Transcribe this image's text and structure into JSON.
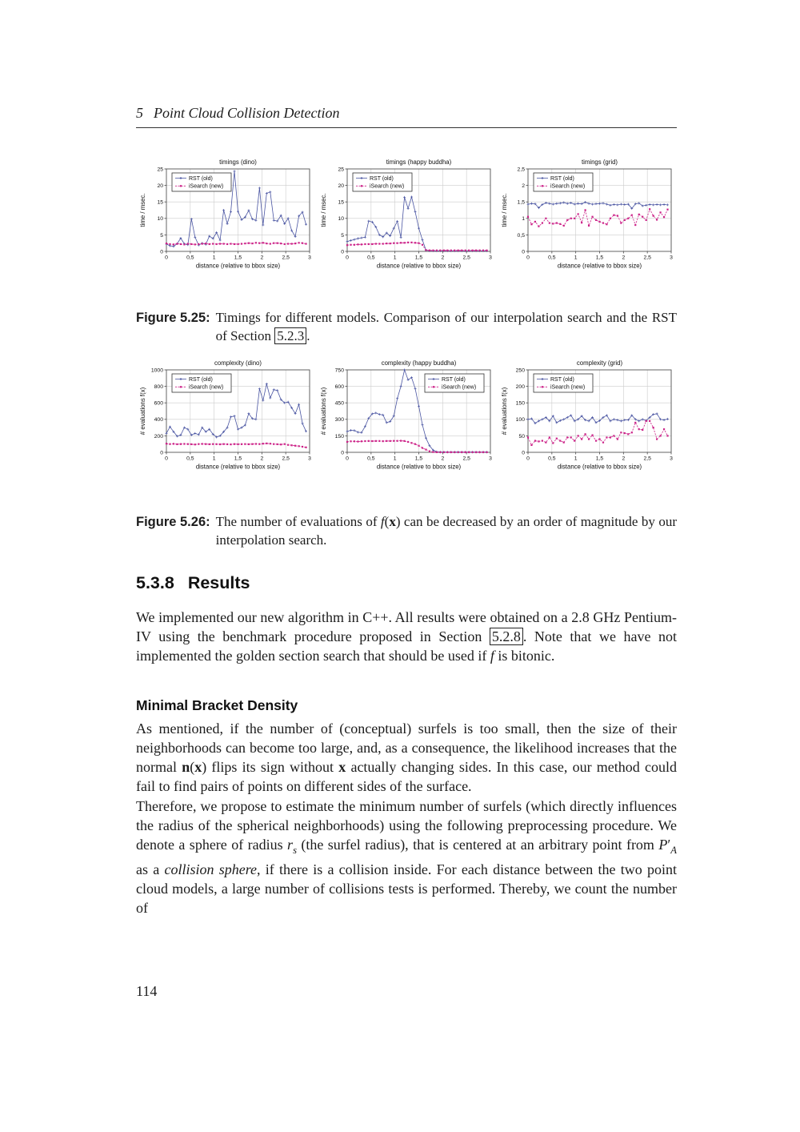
{
  "page": {
    "chapter_number": "5",
    "chapter_title": "Point Cloud Collision Detection",
    "page_number": "114"
  },
  "figures": {
    "fig25": {
      "label": "Figure 5.25:",
      "caption": [
        {
          "t": "Timings for different models. Comparison of our interpolation search and the RST of Section ",
          "s": "n"
        },
        {
          "t": "5.2.3",
          "s": "ref"
        },
        {
          "t": ".",
          "s": "n"
        }
      ]
    },
    "fig26": {
      "label": "Figure 5.26:",
      "caption": [
        {
          "t": "The number of evaluations of ",
          "s": "n"
        },
        {
          "t": "f",
          "s": "i"
        },
        {
          "t": "(",
          "s": "n"
        },
        {
          "t": "x",
          "s": "b"
        },
        {
          "t": ")",
          "s": "n"
        },
        {
          "t": " can be decreased by an order of magnitude by our interpolation search.",
          "s": "n"
        }
      ]
    }
  },
  "section": {
    "number": "5.3.8",
    "title": "Results"
  },
  "subheading": "Minimal Bracket Density",
  "paragraphs": {
    "p1": [
      {
        "t": "We implemented our new algorithm in C++. All results were obtained on a 2.8 GHz Pentium-IV using the benchmark procedure proposed in Section ",
        "s": "n"
      },
      {
        "t": "5.2.8",
        "s": "ref"
      },
      {
        "t": ". Note that we have not implemented the golden section search that should be used if ",
        "s": "n"
      },
      {
        "t": "f",
        "s": "i"
      },
      {
        "t": " is bitonic.",
        "s": "n"
      }
    ],
    "p2": [
      {
        "t": "As mentioned, if the number of (conceptual) surfels is too small, then the size of their neighborhoods can become too large, and, as a consequence, the likelihood increases that the normal ",
        "s": "n"
      },
      {
        "t": "n",
        "s": "b"
      },
      {
        "t": "(",
        "s": "n"
      },
      {
        "t": "x",
        "s": "b"
      },
      {
        "t": ") flips its sign without ",
        "s": "n"
      },
      {
        "t": "x",
        "s": "b"
      },
      {
        "t": " actually changing sides. In this case, our method could fail to find pairs of points on different sides of the surface.",
        "s": "n"
      }
    ],
    "p3": [
      {
        "t": "Therefore, we propose to estimate the minimum number of surfels (which directly influences the radius of the spherical neighborhoods) using the following preprocessing procedure. We denote a sphere of radius ",
        "s": "n"
      },
      {
        "t": "r",
        "s": "i"
      },
      {
        "t": "s",
        "s": "isub"
      },
      {
        "t": " (the surfel radius), that is centered at an arbitrary point from ",
        "s": "n"
      },
      {
        "t": "P",
        "s": "i"
      },
      {
        "t": "′",
        "s": "n"
      },
      {
        "t": "A",
        "s": "isub"
      },
      {
        "t": " as a ",
        "s": "n"
      },
      {
        "t": "collision sphere",
        "s": "i"
      },
      {
        "t": ", if there is a collision inside. For each distance between the two point cloud models, a large number of collisions tests is performed. Thereby, we count the number of",
        "s": "n"
      }
    ]
  },
  "chart_data": {
    "type": "line",
    "xlabel": "distance (relative to bbox size)",
    "xticks": [
      "0",
      "0,5",
      "1",
      "1,5",
      "2",
      "2,5",
      "3"
    ],
    "xlim": [
      0,
      3
    ],
    "grid": true,
    "shared_x": [
      0,
      0.075,
      0.15,
      0.225,
      0.3,
      0.375,
      0.45,
      0.525,
      0.6,
      0.675,
      0.75,
      0.825,
      0.9,
      0.975,
      1.05,
      1.125,
      1.2,
      1.275,
      1.35,
      1.425,
      1.5,
      1.575,
      1.65,
      1.725,
      1.8,
      1.875,
      1.95,
      2.025,
      2.1,
      2.175,
      2.25,
      2.325,
      2.4,
      2.475,
      2.55,
      2.625,
      2.7,
      2.775,
      2.85,
      2.925
    ],
    "charts": [
      {
        "title": "timings (dino)",
        "ylabel": "time / msec.",
        "xlabel": "distance (relative to bbox size)",
        "ylim": [
          0,
          25
        ],
        "yticks": [
          "0",
          "5",
          "10",
          "15",
          "20",
          "25"
        ],
        "xticks": [
          "0",
          "0,5",
          "1",
          "1,5",
          "2",
          "2,5",
          "3"
        ],
        "legend": "top-left",
        "series": [
          {
            "name": "RST (old)",
            "color": "#4a55a2",
            "marker": "plus",
            "dash": "solid",
            "values": [
              2.2,
              1.7,
              1.5,
              2.3,
              4.0,
              2.3,
              2.0,
              9.8,
              4.3,
              1.9,
              2.5,
              2.1,
              4.6,
              3.9,
              5.7,
              3.4,
              12.5,
              8.4,
              12.0,
              24.3,
              12.1,
              9.6,
              10.4,
              12.4,
              9.8,
              9.4,
              19.2,
              8.0,
              17.6,
              18.0,
              9.4,
              9.2,
              10.9,
              8.4,
              10.0,
              6.3,
              4.5,
              10.7,
              11.9,
              8.2
            ]
          },
          {
            "name": "iSearch (new)",
            "color": "#cc2288",
            "marker": "square",
            "dash": "dashed",
            "values": [
              2.4,
              2.2,
              2.1,
              2.3,
              2.2,
              2.1,
              2.3,
              2.2,
              2.1,
              2.2,
              2.3,
              2.4,
              2.2,
              2.3,
              2.2,
              2.3,
              2.3,
              2.2,
              2.3,
              2.2,
              2.2,
              2.3,
              2.4,
              2.5,
              2.4,
              2.6,
              2.5,
              2.6,
              2.4,
              2.3,
              2.5,
              2.5,
              2.4,
              2.2,
              2.3,
              2.3,
              2.4,
              2.6,
              2.5,
              2.3
            ]
          }
        ]
      },
      {
        "title": "timings (happy buddha)",
        "ylabel": "time / msec.",
        "xlabel": "distance (relative to bbox size)",
        "ylim": [
          0,
          25
        ],
        "yticks": [
          "0",
          "5",
          "10",
          "15",
          "20",
          "25"
        ],
        "xticks": [
          "0",
          "0,5",
          "1",
          "1,5",
          "2",
          "2,5",
          "3"
        ],
        "legend": "top-left",
        "series": [
          {
            "name": "RST (old)",
            "color": "#4a55a2",
            "marker": "plus",
            "dash": "solid",
            "values": [
              3.0,
              3.3,
              3.6,
              3.9,
              4.1,
              4.3,
              9.2,
              8.9,
              7.4,
              5.0,
              4.4,
              5.6,
              4.7,
              7.0,
              9.1,
              4.2,
              16.4,
              13.0,
              16.5,
              12.0,
              7.0,
              3.5,
              0.4,
              0.15,
              0.15,
              0.15,
              0.15,
              0.15,
              0.15,
              0.15,
              0.15,
              0.15,
              0.15,
              0.15,
              0.15,
              0.15,
              0.15,
              0.15,
              0.15,
              0.15
            ]
          },
          {
            "name": "iSearch (new)",
            "color": "#cc2288",
            "marker": "square",
            "dash": "dashed",
            "values": [
              1.9,
              2.0,
              2.0,
              2.1,
              2.1,
              2.2,
              2.2,
              2.2,
              2.3,
              2.3,
              2.3,
              2.4,
              2.4,
              2.5,
              2.5,
              2.6,
              2.6,
              2.7,
              2.7,
              2.6,
              2.5,
              2.0,
              0.4,
              0.3,
              0.3,
              0.3,
              0.3,
              0.3,
              0.3,
              0.3,
              0.3,
              0.3,
              0.3,
              0.3,
              0.3,
              0.3,
              0.3,
              0.3,
              0.3,
              0.3
            ]
          }
        ]
      },
      {
        "title": "timings (grid)",
        "ylabel": "time / msec.",
        "xlabel": "distance (relative to bbox size)",
        "ylim": [
          0,
          2.5
        ],
        "yticks": [
          "0",
          "0,5",
          "1",
          "1,5",
          "2",
          "2,5"
        ],
        "xticks": [
          "0",
          "0,5",
          "1",
          "1,5",
          "2",
          "2,5",
          "3"
        ],
        "legend": "top-left",
        "series": [
          {
            "name": "RST (old)",
            "color": "#4a55a2",
            "marker": "plus",
            "dash": "solid",
            "values": [
              1.43,
              1.45,
              1.44,
              1.32,
              1.42,
              1.47,
              1.45,
              1.43,
              1.45,
              1.46,
              1.48,
              1.45,
              1.47,
              1.43,
              1.45,
              1.44,
              1.49,
              1.45,
              1.43,
              1.44,
              1.45,
              1.46,
              1.43,
              1.4,
              1.42,
              1.41,
              1.43,
              1.42,
              1.43,
              1.3,
              1.44,
              1.46,
              1.38,
              1.4,
              1.42,
              1.41,
              1.42,
              1.41,
              1.42,
              1.41
            ]
          },
          {
            "name": "iSearch (new)",
            "color": "#cc2288",
            "marker": "square",
            "dash": "dashed",
            "values": [
              1.05,
              0.82,
              0.9,
              0.76,
              0.86,
              1.0,
              0.86,
              0.84,
              0.86,
              0.83,
              0.78,
              0.95,
              1.0,
              1.0,
              1.13,
              0.87,
              1.25,
              0.78,
              1.05,
              0.95,
              0.9,
              0.86,
              0.82,
              1.0,
              1.1,
              1.08,
              0.86,
              0.95,
              1.0,
              1.1,
              0.8,
              1.12,
              1.05,
              0.95,
              1.28,
              1.08,
              0.96,
              1.18,
              1.04,
              1.27
            ]
          }
        ]
      },
      {
        "title": "complexity (dino)",
        "ylabel": "# evaluations f(x)",
        "xlabel": "distance (relative to bbox size)",
        "ylim": [
          0,
          1000
        ],
        "yticks": [
          "0",
          "200",
          "400",
          "600",
          "800",
          "1000"
        ],
        "xticks": [
          "0",
          "0,5",
          "1",
          "1,5",
          "2",
          "2,5",
          "3"
        ],
        "legend": "top-left",
        "series": [
          {
            "name": "RST (old)",
            "color": "#4a55a2",
            "marker": "plus",
            "dash": "solid",
            "values": [
              230,
              310,
              250,
              195,
              210,
              300,
              280,
              210,
              230,
              215,
              300,
              250,
              280,
              220,
              185,
              200,
              250,
              300,
              430,
              440,
              280,
              300,
              330,
              470,
              410,
              400,
              770,
              630,
              830,
              660,
              760,
              750,
              640,
              600,
              610,
              540,
              470,
              580,
              350,
              255
            ]
          },
          {
            "name": "iSearch (new)",
            "color": "#cc2288",
            "marker": "square",
            "dash": "dashed",
            "values": [
              105,
              100,
              103,
              98,
              100,
              102,
              100,
              98,
              95,
              100,
              102,
              100,
              98,
              100,
              99,
              97,
              100,
              98,
              96,
              100,
              98,
              99,
              100,
              98,
              100,
              102,
              100,
              105,
              108,
              105,
              100,
              98,
              95,
              100,
              90,
              85,
              80,
              75,
              68,
              60
            ]
          }
        ]
      },
      {
        "title": "complexity (happy buddha)",
        "ylabel": "# evaluations f(x)",
        "xlabel": "distance (relative to bbox size)",
        "ylim": [
          0,
          750
        ],
        "yticks": [
          "0",
          "150",
          "300",
          "450",
          "600",
          "750"
        ],
        "xticks": [
          "0",
          "0,5",
          "1",
          "1,5",
          "2",
          "2,5",
          "3"
        ],
        "legend": "top-right",
        "series": [
          {
            "name": "RST (old)",
            "color": "#4a55a2",
            "marker": "plus",
            "dash": "solid",
            "values": [
              190,
              200,
              198,
              183,
              180,
              235,
              310,
              350,
              358,
              345,
              340,
              270,
              280,
              330,
              490,
              600,
              750,
              660,
              680,
              580,
              420,
              250,
              130,
              60,
              20,
              5,
              2,
              2,
              2,
              2,
              2,
              2,
              2,
              2,
              2,
              2,
              2,
              2,
              2,
              2
            ]
          },
          {
            "name": "iSearch (new)",
            "color": "#cc2288",
            "marker": "square",
            "dash": "dashed",
            "values": [
              95,
              100,
              100,
              98,
              100,
              102,
              103,
              102,
              103,
              103,
              101,
              103,
              103,
              104,
              104,
              105,
              103,
              95,
              85,
              75,
              60,
              40,
              25,
              10,
              3,
              1,
              1,
              1,
              1,
              1,
              1,
              1,
              1,
              1,
              1,
              1,
              1,
              1,
              1,
              1
            ]
          }
        ]
      },
      {
        "title": "complexity (grid)",
        "ylabel": "# evaluations f(x)",
        "xlabel": "distance (relative to bbox size)",
        "ylim": [
          0,
          250
        ],
        "yticks": [
          "0",
          "50",
          "100",
          "150",
          "200",
          "250"
        ],
        "xticks": [
          "0",
          "0,5",
          "1",
          "1,5",
          "2",
          "2,5",
          "3"
        ],
        "legend": "top-left",
        "series": [
          {
            "name": "RST (old)",
            "color": "#4a55a2",
            "marker": "plus",
            "dash": "solid",
            "values": [
              100,
              102,
              88,
              95,
              100,
              106,
              95,
              110,
              90,
              96,
              100,
              106,
              112,
              95,
              100,
              110,
              98,
              95,
              106,
              90,
              96,
              106,
              112,
              95,
              100,
              98,
              95,
              98,
              98,
              112,
              100,
              95,
              100,
              96,
              106,
              115,
              117,
              100,
              98,
              101
            ]
          },
          {
            "name": "iSearch (new)",
            "color": "#cc2288",
            "marker": "square",
            "dash": "dashed",
            "values": [
              45,
              22,
              35,
              33,
              35,
              30,
              45,
              28,
              42,
              35,
              30,
              45,
              45,
              35,
              50,
              40,
              55,
              40,
              52,
              35,
              40,
              30,
              45,
              45,
              50,
              40,
              60,
              58,
              55,
              60,
              90,
              70,
              68,
              95,
              95,
              75,
              40,
              50,
              70,
              50
            ]
          }
        ]
      }
    ]
  }
}
